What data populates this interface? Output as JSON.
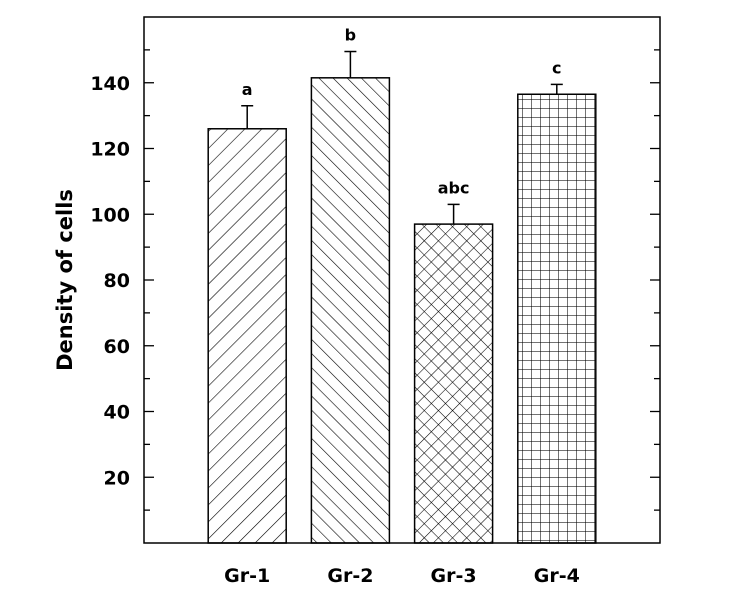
{
  "chart_data": {
    "type": "bar",
    "title": "",
    "xlabel": "",
    "ylabel": "Density of cells",
    "ylim": [
      0,
      160
    ],
    "yticks": [
      20,
      40,
      60,
      80,
      100,
      120,
      140
    ],
    "categories": [
      "Gr-1",
      "Gr-2",
      "Gr-3",
      "Gr-4"
    ],
    "values": [
      126,
      141.5,
      97,
      136.5
    ],
    "errors": [
      7,
      8,
      6,
      3
    ],
    "annotations": [
      "a",
      "b",
      "abc",
      "c"
    ],
    "patterns": [
      "forward-diagonal",
      "backward-diagonal",
      "cross-diagonal",
      "grid"
    ],
    "grid": false,
    "colors": {
      "fill": "#ffffff",
      "stroke": "#000000"
    }
  }
}
